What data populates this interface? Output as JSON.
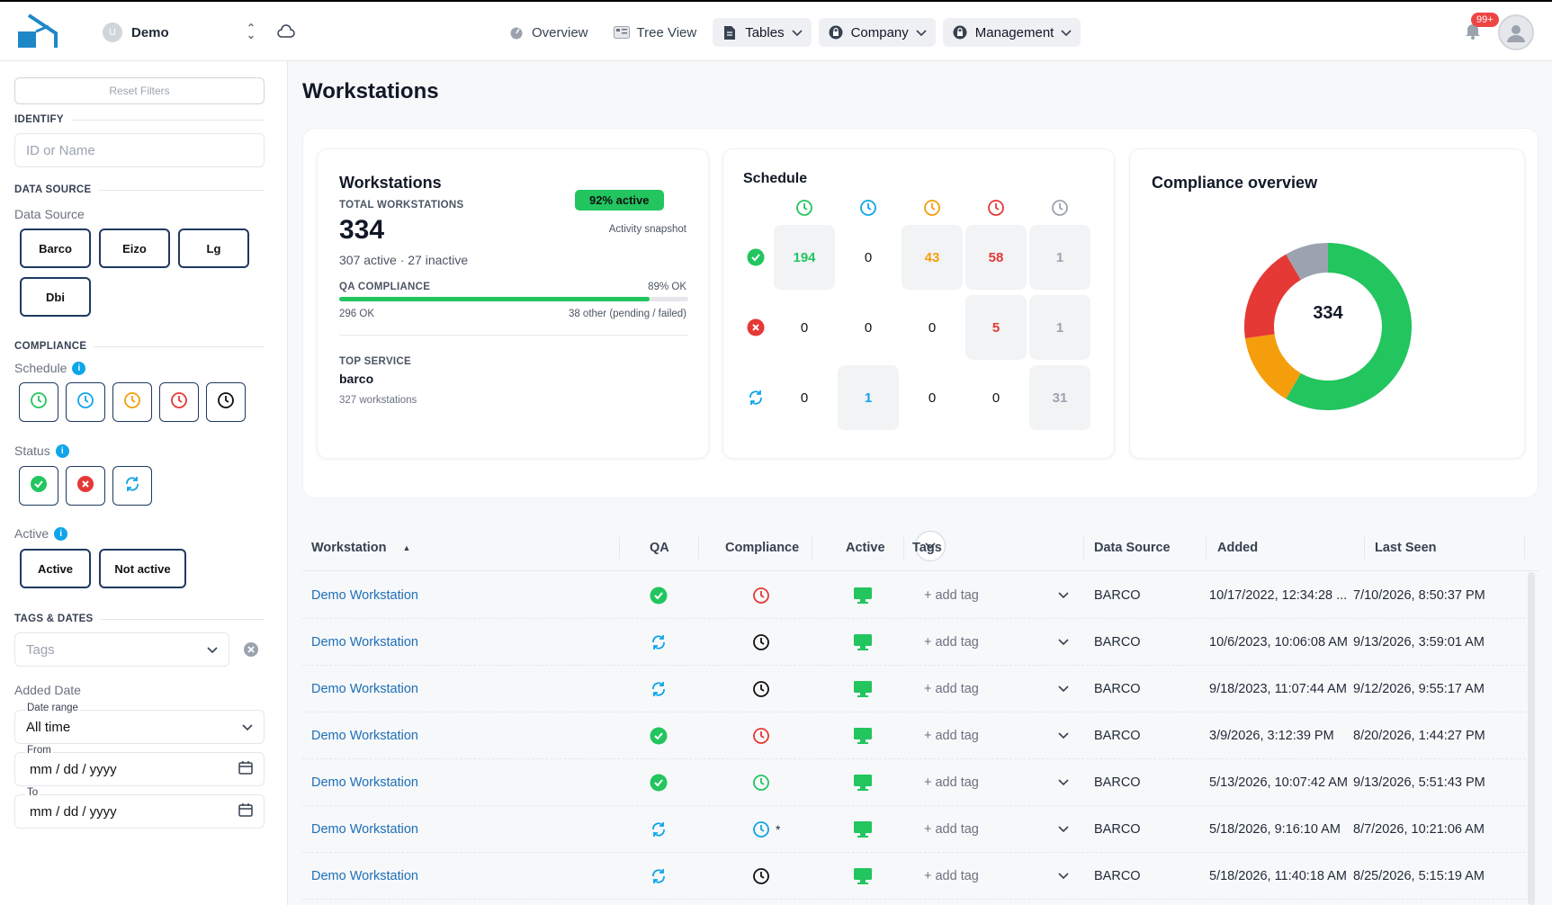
{
  "header": {
    "account_initial": "U",
    "account_name": "Demo",
    "nav": [
      {
        "label": "Overview",
        "icon": "gauge-icon"
      },
      {
        "label": "Tree View",
        "icon": "tree-view-icon"
      },
      {
        "label": "Tables",
        "icon": "document-icon"
      },
      {
        "label": "Company",
        "icon": "lock-icon"
      },
      {
        "label": "Management",
        "icon": "lock-icon"
      }
    ],
    "notification_badge": "99+"
  },
  "sidebar": {
    "reset_label": "Reset Filters",
    "identify_title": "IDENTIFY",
    "id_placeholder": "ID or Name",
    "datasource_title": "DATA SOURCE",
    "datasource_label": "Data Source",
    "sources": [
      "Barco",
      "Eizo",
      "Lg",
      "Dbi"
    ],
    "compliance_title": "COMPLIANCE",
    "schedule_label": "Schedule",
    "status_label": "Status",
    "active_label": "Active",
    "active_options": [
      "Active",
      "Not active"
    ],
    "tags_title": "TAGS & DATES",
    "tags_placeholder": "Tags",
    "added_date_label": "Added Date",
    "date_range_label": "Date range",
    "date_range_value": "All time",
    "from_label": "From",
    "to_label": "To",
    "date_placeholder": "mm / dd / yyyy"
  },
  "page": {
    "title": "Workstations"
  },
  "kpi": {
    "title": "Workstations",
    "total_label": "TOTAL WORKSTATIONS",
    "total": "334",
    "sub": "307 active · 27 inactive",
    "active_badge": "92% active",
    "snapshot": "Activity snapshot",
    "qa_label": "QA COMPLIANCE",
    "qa_pct_label": "89% OK",
    "qa_fraction": 0.89,
    "qa_ok": "296 OK",
    "qa_other": "38 other (pending / failed)",
    "top_service_label": "TOP SERVICE",
    "top_service": "barco",
    "top_service_count": "327 workstations"
  },
  "schedule": {
    "title": "Schedule",
    "rows": [
      [
        "194",
        "0",
        "43",
        "58",
        "1"
      ],
      [
        "0",
        "0",
        "0",
        "5",
        "1"
      ],
      [
        "0",
        "1",
        "0",
        "0",
        "31"
      ]
    ]
  },
  "compliance_overview": {
    "title": "Compliance overview",
    "center": "334",
    "chart_data": {
      "type": "pie",
      "donut": true,
      "values": [
        195,
        48,
        63,
        28
      ],
      "colors": [
        "#22c55e",
        "#f59e0b",
        "#e53935",
        "#9ca3af"
      ]
    }
  },
  "table": {
    "columns": [
      "Workstation",
      "QA",
      "Compliance",
      "Active",
      "Tags",
      "Data Source",
      "Added",
      "Last Seen"
    ],
    "add_tag_label": "+ add tag",
    "rows": [
      {
        "name": "Demo Workstation",
        "qa": "check",
        "comp": "red",
        "src": "BARCO",
        "added": "10/17/2022, 12:34:28 ...",
        "seen": "7/10/2026, 8:50:37 PM"
      },
      {
        "name": "Demo Workstation",
        "qa": "sync",
        "comp": "black",
        "src": "BARCO",
        "added": "10/6/2023, 10:06:08 AM",
        "seen": "9/13/2026, 3:59:01 AM"
      },
      {
        "name": "Demo Workstation",
        "qa": "sync",
        "comp": "black",
        "src": "BARCO",
        "added": "9/18/2023, 11:07:44 AM",
        "seen": "9/12/2026, 9:55:17 AM"
      },
      {
        "name": "Demo Workstation",
        "qa": "check",
        "comp": "red",
        "src": "BARCO",
        "added": "3/9/2026, 3:12:39 PM",
        "seen": "8/20/2026, 1:44:27 PM"
      },
      {
        "name": "Demo Workstation",
        "qa": "check",
        "comp": "green",
        "src": "BARCO",
        "added": "5/13/2026, 10:07:42 AM",
        "seen": "9/13/2026, 5:51:43 PM"
      },
      {
        "name": "Demo Workstation",
        "qa": "sync",
        "comp": "blue",
        "comp_mark": "*",
        "src": "BARCO",
        "added": "5/18/2026, 9:16:10 AM",
        "seen": "8/7/2026, 10:21:06 AM"
      },
      {
        "name": "Demo Workstation",
        "qa": "sync",
        "comp": "black",
        "src": "BARCO",
        "added": "5/18/2026, 11:40:18 AM",
        "seen": "8/25/2026, 5:15:19 AM"
      }
    ]
  }
}
